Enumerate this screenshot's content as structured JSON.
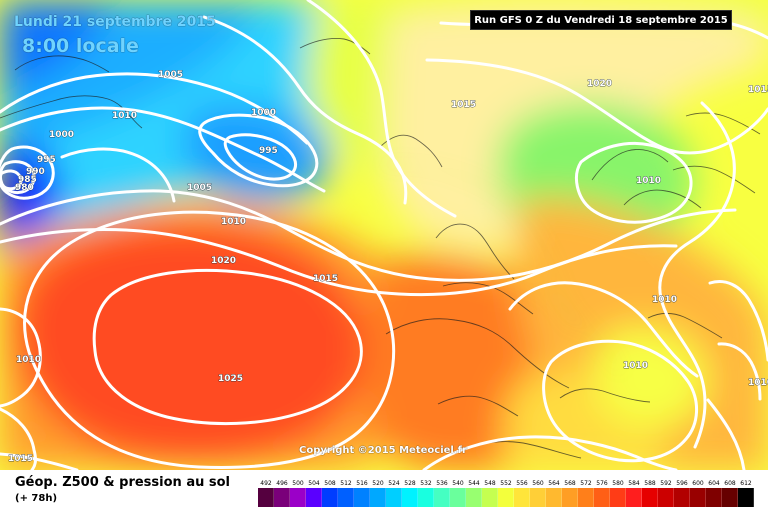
{
  "header": {
    "date": "Lundi 21 septembre 2015",
    "time": "8:00 locale",
    "run": "Run GFS 0 Z du Vendredi 18 septembre 2015"
  },
  "footer": {
    "copyright": "Copyright ©2015 Meteociel.fr",
    "legend_title": "Géop. Z500 & pression au sol",
    "legend_sub": "(+ 78h)"
  },
  "isobars": {
    "labels": [
      "1005",
      "1010",
      "1000",
      "995",
      "990",
      "985",
      "980",
      "1000",
      "995",
      "1005",
      "1010",
      "1020",
      "1015",
      "1015",
      "1020",
      "1010",
      "1010",
      "1025",
      "1010",
      "1010",
      "1015",
      "1015",
      "1010"
    ]
  },
  "scale": {
    "labels": [
      "492",
      "496",
      "500",
      "504",
      "508",
      "512",
      "516",
      "520",
      "524",
      "528",
      "532",
      "536",
      "540",
      "544",
      "548",
      "552",
      "556",
      "560",
      "564",
      "568",
      "572",
      "576",
      "580",
      "584",
      "588",
      "592",
      "596",
      "600",
      "604",
      "608",
      "612"
    ],
    "colors": [
      "#55003f",
      "#7a007a",
      "#9b00c8",
      "#5a00ff",
      "#003dff",
      "#0060ff",
      "#0081ff",
      "#00a8ff",
      "#00cfff",
      "#00f2ff",
      "#19ffe0",
      "#45ffc2",
      "#6aff9c",
      "#98ff70",
      "#c5ff50",
      "#f3ff3c",
      "#ffe53a",
      "#ffcf37",
      "#ffb92f",
      "#ff9e24",
      "#ff7f1a",
      "#ff5f16",
      "#ff3c16",
      "#ff1e1e",
      "#e60000",
      "#cc0000",
      "#b20000",
      "#990000",
      "#7f0000",
      "#660000",
      "#000000"
    ]
  },
  "map": {
    "field_colors": {
      "deep_blue": "#0019ff",
      "blue": "#0072ff",
      "light_blue": "#2ad1ff",
      "cyan": "#37f2ff",
      "green": "#62f39a",
      "yellow_green": "#c7f357",
      "yellow": "#f4ff47",
      "pale_yellow": "#fff09a",
      "orange": "#ffb53a",
      "red_orange": "#ff6b2a",
      "red": "#ff3c22"
    }
  }
}
